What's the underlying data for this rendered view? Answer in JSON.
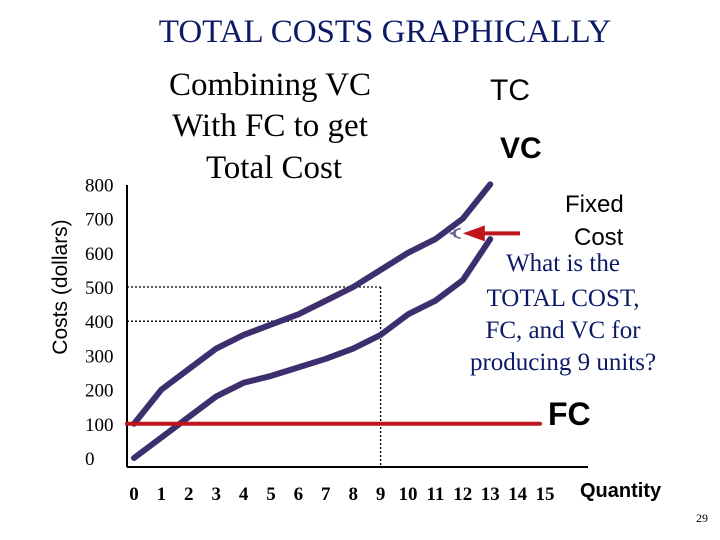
{
  "slide": {
    "page_number": "29"
  },
  "chart_data": {
    "type": "line",
    "title": "TOTAL COSTS GRAPHICALLY",
    "subtitle_lines": [
      "Combining VC",
      "With FC to get",
      "Total Cost"
    ],
    "xlabel": "Quantity",
    "ylabel": "Costs (dollars)",
    "x_ticks": [
      0,
      1,
      2,
      3,
      4,
      5,
      6,
      7,
      8,
      9,
      10,
      11,
      12,
      13,
      14,
      15
    ],
    "y_ticks": [
      0,
      100,
      200,
      300,
      400,
      500,
      600,
      700,
      800
    ],
    "xlim": [
      0,
      15
    ],
    "ylim": [
      0,
      800
    ],
    "grid": false,
    "series": [
      {
        "name": "TC",
        "color": "#3d2e6e",
        "x": [
          0,
          1,
          2,
          3,
          4,
          5,
          6,
          7,
          8,
          9,
          10,
          11,
          12,
          13
        ],
        "y": [
          100,
          200,
          260,
          320,
          360,
          390,
          420,
          460,
          500,
          550,
          600,
          640,
          700,
          800
        ]
      },
      {
        "name": "VC",
        "color": "#3d2e6e",
        "x": [
          0,
          1,
          2,
          3,
          4,
          5,
          6,
          7,
          8,
          9,
          10,
          11,
          12,
          13
        ],
        "y": [
          0,
          60,
          120,
          180,
          220,
          240,
          265,
          290,
          320,
          360,
          420,
          460,
          520,
          640
        ]
      },
      {
        "name": "FC",
        "color": "#c0141c",
        "x": [
          0,
          15
        ],
        "y": [
          100,
          100
        ]
      }
    ],
    "guides": {
      "x": 9,
      "y_values": [
        500,
        400
      ]
    },
    "annotations": {
      "fixed_cost_label_lines": [
        "Fixed",
        "Cost"
      ],
      "fixed_cost_brace_x": 12,
      "question_lines": [
        "What is the",
        "TOTAL COST,",
        "FC, and VC for",
        "producing 9 units?"
      ]
    }
  }
}
